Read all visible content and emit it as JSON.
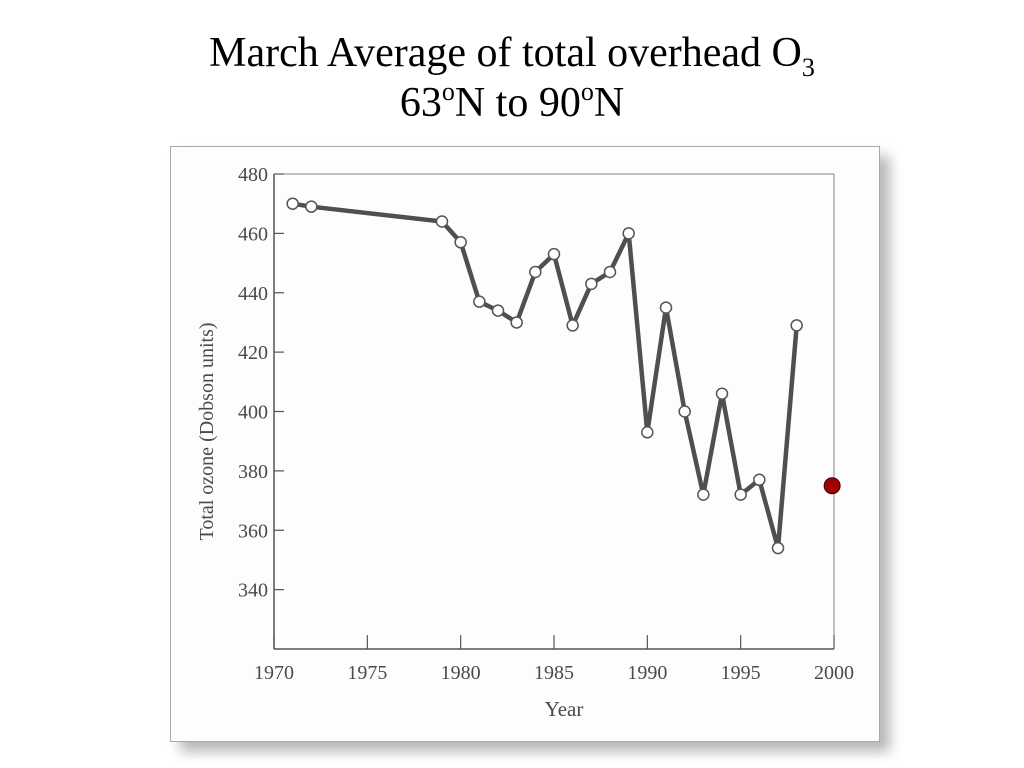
{
  "slide": {
    "title_main": "March Average of total overhead O",
    "title_sub": "3",
    "line2_a": "63",
    "line2_sup1": "o",
    "line2_b": "N to 90",
    "line2_sup2": "o",
    "line2_c": "N"
  },
  "chart_data": {
    "type": "line",
    "title": "March Average of total overhead O3 63oN to 90oN",
    "xlabel": "Year",
    "ylabel": "Total ozone (Dobson units)",
    "xlim": [
      1970,
      2000
    ],
    "ylim": [
      320,
      480
    ],
    "xticks": [
      1970,
      1975,
      1980,
      1985,
      1990,
      1995,
      2000
    ],
    "yticks": [
      340,
      360,
      380,
      400,
      420,
      440,
      460,
      480
    ],
    "grid": false,
    "series": [
      {
        "x": [
          1971,
          1972,
          1979,
          1980,
          1981,
          1982,
          1983,
          1984,
          1985,
          1986,
          1987,
          1988,
          1989,
          1990,
          1991,
          1992,
          1993,
          1994,
          1995,
          1996,
          1997,
          1998
        ],
        "y": [
          470,
          469,
          464,
          457,
          437,
          434,
          430,
          447,
          453,
          429,
          443,
          447,
          460,
          393,
          435,
          400,
          372,
          406,
          372,
          377,
          354,
          429
        ]
      }
    ],
    "extra_point": {
      "x": 1999.9,
      "y": 375,
      "color": "#a00000"
    },
    "colors": {
      "line": "#4f4f4f",
      "marker_fill": "#ffffff",
      "marker_stroke": "#555555",
      "axis": "#555555"
    }
  }
}
